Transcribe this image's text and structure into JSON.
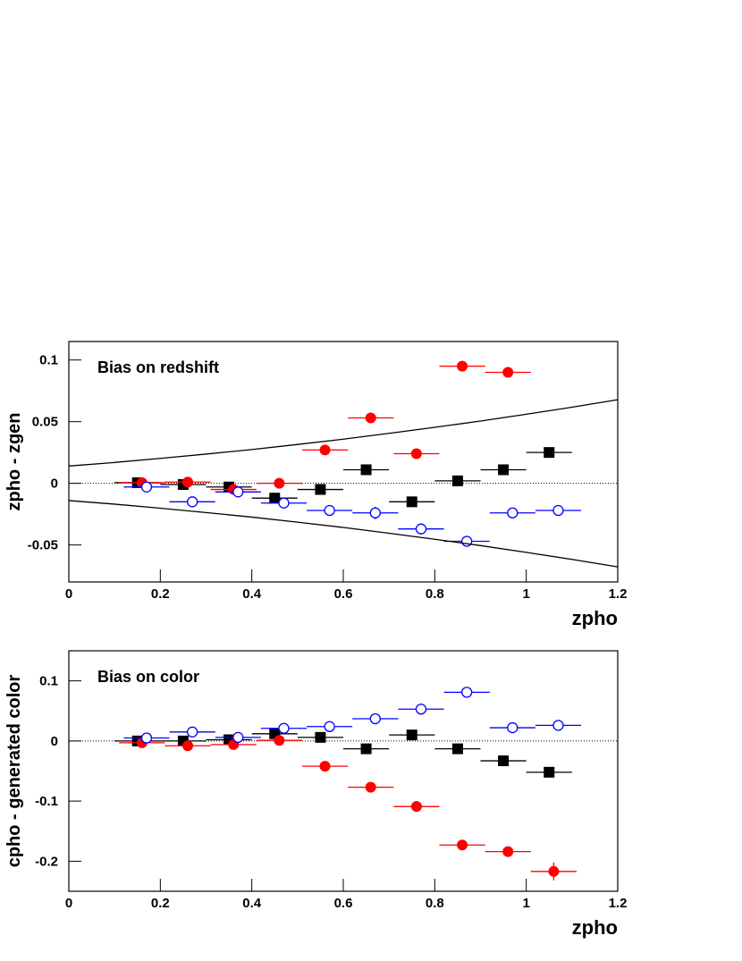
{
  "chart_data": [
    {
      "type": "scatter",
      "annotation": "Bias on redshift",
      "ylabel": "zpho - zgen",
      "xlabel": "zpho",
      "xlim": [
        0,
        1.2
      ],
      "xticks": [
        0,
        0.2,
        0.4,
        0.6,
        0.8,
        1,
        1.2
      ],
      "ylim": [
        -0.08,
        0.115
      ],
      "yticks": [
        -0.05,
        0,
        0.05,
        0.1
      ],
      "zero_line": true,
      "series": [
        {
          "marker": "square",
          "color": "#000000",
          "x": [
            0.15,
            0.25,
            0.35,
            0.45,
            0.55,
            0.65,
            0.75,
            0.85,
            0.95,
            1.05
          ],
          "values": [
            0.0005,
            -0.001,
            -0.003,
            -0.012,
            -0.005,
            0.011,
            -0.015,
            0.002,
            0.011,
            0.025
          ],
          "xerr": [
            0.05,
            0.05,
            0.05,
            0.05,
            0.05,
            0.05,
            0.05,
            0.05,
            0.05,
            0.05
          ],
          "yerr": [
            0.001,
            0.001,
            0.001,
            0.002,
            0.002,
            0.002,
            0.002,
            0.002,
            0.002,
            0.002
          ]
        },
        {
          "marker": "circle",
          "color": "#ff0000",
          "x": [
            0.16,
            0.26,
            0.36,
            0.46,
            0.56,
            0.66,
            0.76,
            0.86,
            0.96
          ],
          "values": [
            0.0005,
            0.001,
            -0.005,
            0,
            0.027,
            0.053,
            0.024,
            0.095,
            0.09
          ],
          "xerr": [
            0.05,
            0.05,
            0.05,
            0.05,
            0.05,
            0.05,
            0.05,
            0.05,
            0.05
          ],
          "yerr": [
            0.001,
            0.001,
            0.001,
            0.001,
            0.002,
            0.002,
            0.002,
            0.004,
            0.004
          ]
        },
        {
          "marker": "open-circle",
          "color": "#0000ff",
          "x": [
            0.17,
            0.27,
            0.37,
            0.47,
            0.57,
            0.67,
            0.77,
            0.87,
            0.97,
            1.07
          ],
          "values": [
            -0.003,
            -0.015,
            -0.007,
            -0.016,
            -0.022,
            -0.024,
            -0.037,
            -0.047,
            -0.024,
            -0.022
          ],
          "xerr": [
            0.05,
            0.05,
            0.05,
            0.05,
            0.05,
            0.05,
            0.05,
            0.05,
            0.05,
            0.05
          ],
          "yerr": [
            0.001,
            0.004,
            0.002,
            0.002,
            0.002,
            0.005,
            0.003,
            0.004,
            0.002,
            0.002
          ]
        },
        {
          "type": "line",
          "color": "#000000",
          "x": [
            0,
            0.1,
            0.2,
            0.3,
            0.4,
            0.5,
            0.6,
            0.7,
            0.8,
            0.9,
            1,
            1.1,
            1.2
          ],
          "values": [
            0.014,
            0.0169,
            0.0202,
            0.0237,
            0.0274,
            0.0315,
            0.0358,
            0.0405,
            0.0454,
            0.0505,
            0.056,
            0.0617,
            0.0678
          ]
        },
        {
          "type": "line",
          "color": "#000000",
          "x": [
            0,
            0.1,
            0.2,
            0.3,
            0.4,
            0.5,
            0.6,
            0.7,
            0.8,
            0.9,
            1,
            1.1,
            1.2
          ],
          "values": [
            -0.014,
            -0.0169,
            -0.0202,
            -0.0237,
            -0.0274,
            -0.0315,
            -0.0358,
            -0.0405,
            -0.0454,
            -0.0505,
            -0.056,
            -0.0617,
            -0.0678
          ]
        }
      ]
    },
    {
      "type": "scatter",
      "annotation": "Bias on color",
      "ylabel": "cpho - generated color",
      "xlabel": "zpho",
      "xlim": [
        0,
        1.2
      ],
      "xticks": [
        0,
        0.2,
        0.4,
        0.6,
        0.8,
        1,
        1.2
      ],
      "ylim": [
        -0.25,
        0.15
      ],
      "yticks": [
        -0.2,
        -0.1,
        0,
        0.1
      ],
      "zero_line": true,
      "series": [
        {
          "marker": "square",
          "color": "#000000",
          "x": [
            0.15,
            0.25,
            0.35,
            0.45,
            0.55,
            0.65,
            0.75,
            0.85,
            0.95,
            1.05
          ],
          "values": [
            0,
            0,
            0.002,
            0.012,
            0.006,
            -0.013,
            0.01,
            -0.013,
            -0.033,
            -0.052
          ],
          "xerr": [
            0.05,
            0.05,
            0.05,
            0.05,
            0.05,
            0.05,
            0.05,
            0.05,
            0.05,
            0.05
          ],
          "yerr": [
            0.002,
            0.002,
            0.002,
            0.003,
            0.003,
            0.003,
            0.003,
            0.003,
            0.003,
            0.004
          ]
        },
        {
          "marker": "circle",
          "color": "#ff0000",
          "x": [
            0.16,
            0.26,
            0.36,
            0.46,
            0.56,
            0.66,
            0.76,
            0.86,
            0.96,
            1.06
          ],
          "values": [
            -0.003,
            -0.008,
            -0.006,
            0.001,
            -0.042,
            -0.077,
            -0.109,
            -0.173,
            -0.184,
            -0.217
          ],
          "xerr": [
            0.05,
            0.05,
            0.05,
            0.05,
            0.05,
            0.05,
            0.05,
            0.05,
            0.05,
            0.05
          ],
          "yerr": [
            0.002,
            0.002,
            0.002,
            0.002,
            0.003,
            0.004,
            0.004,
            0.006,
            0.007,
            0.015
          ]
        },
        {
          "marker": "open-circle",
          "color": "#0000ff",
          "x": [
            0.17,
            0.27,
            0.37,
            0.47,
            0.57,
            0.67,
            0.77,
            0.87,
            0.97,
            1.07
          ],
          "values": [
            0.005,
            0.015,
            0.006,
            0.021,
            0.024,
            0.037,
            0.053,
            0.081,
            0.022,
            0.026
          ],
          "xerr": [
            0.05,
            0.05,
            0.05,
            0.05,
            0.05,
            0.05,
            0.05,
            0.05,
            0.05,
            0.05
          ],
          "yerr": [
            0.002,
            0.003,
            0.002,
            0.003,
            0.003,
            0.003,
            0.004,
            0.005,
            0.004,
            0.004
          ]
        }
      ]
    }
  ]
}
